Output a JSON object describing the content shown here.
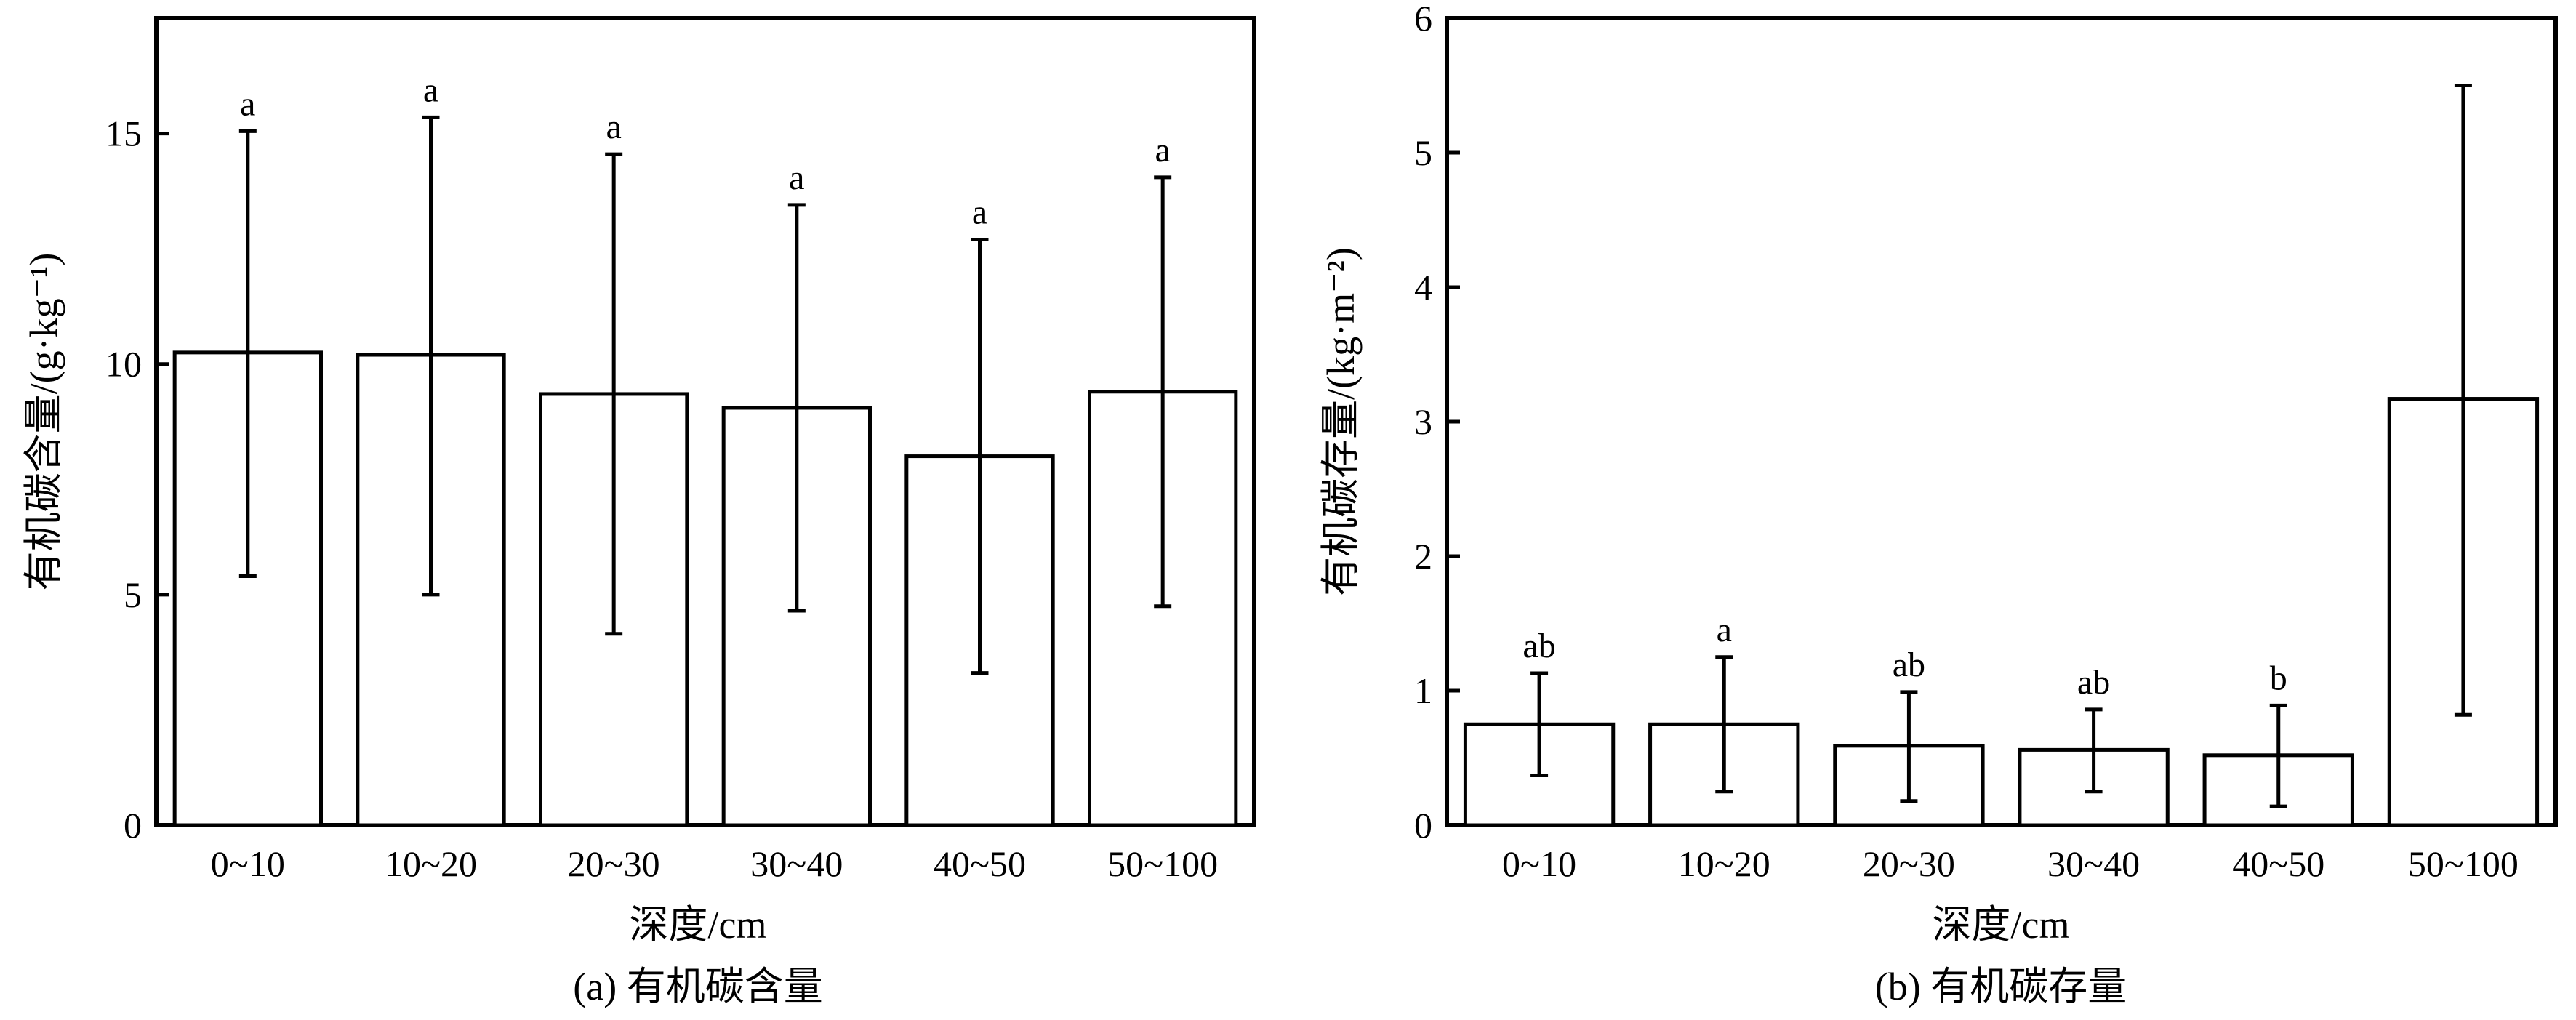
{
  "chart_data": [
    {
      "type": "bar",
      "caption": "(a) 有机碳含量",
      "xlabel": "深度/cm",
      "ylabel": "有机碳含量/(g·kg⁻¹)",
      "ylim": [
        0,
        17.5
      ],
      "yticks": [
        0,
        5,
        10,
        15
      ],
      "grid": false,
      "categories": [
        "0~10",
        "10~20",
        "20~30",
        "30~40",
        "40~50",
        "50~100"
      ],
      "values": [
        10.25,
        10.2,
        9.35,
        9.05,
        8.0,
        9.4
      ],
      "error_low": [
        5.4,
        5.0,
        4.15,
        4.65,
        3.3,
        4.75
      ],
      "error_high": [
        15.05,
        15.35,
        14.55,
        13.45,
        12.7,
        14.05
      ],
      "significance": [
        "a",
        "a",
        "a",
        "a",
        "a",
        "a"
      ]
    },
    {
      "type": "bar",
      "caption": "(b) 有机碳存量",
      "xlabel": "深度/cm",
      "ylabel": "有机碳存量/(kg·m⁻²)",
      "ylim": [
        0,
        6
      ],
      "yticks": [
        0,
        1,
        2,
        3,
        4,
        5,
        6
      ],
      "grid": false,
      "categories": [
        "0~10",
        "10~20",
        "20~30",
        "30~40",
        "40~50",
        "50~100"
      ],
      "values": [
        0.75,
        0.75,
        0.59,
        0.56,
        0.52,
        3.17
      ],
      "error_low": [
        0.37,
        0.25,
        0.18,
        0.25,
        0.14,
        0.82
      ],
      "error_high": [
        1.13,
        1.25,
        0.99,
        0.86,
        0.89,
        5.5
      ],
      "significance": [
        "ab",
        "a",
        "ab",
        "ab",
        "b",
        ""
      ]
    }
  ]
}
